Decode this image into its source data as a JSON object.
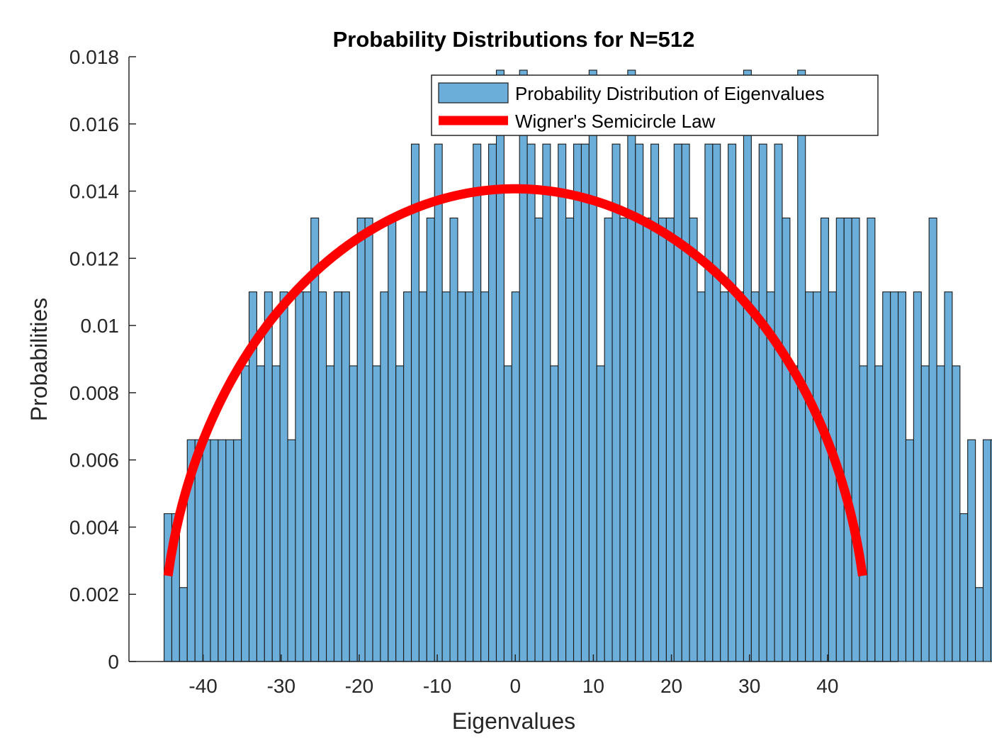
{
  "chart_data": {
    "type": "bar",
    "title": "Probability Distributions for N=512",
    "xlabel": "Eigenvalues",
    "ylabel": "Probabilities",
    "xlim": [
      -49.5,
      49
    ],
    "ylim": [
      0,
      0.018
    ],
    "xticks": [
      -40,
      -30,
      -20,
      -10,
      0,
      10,
      20,
      30,
      40
    ],
    "xtick_labels": [
      "-40",
      "-30",
      "-20",
      "-10",
      "0",
      "10",
      "20",
      "30",
      "40"
    ],
    "yticks": [
      0,
      0.002,
      0.004,
      0.006,
      0.008,
      0.01,
      0.012,
      0.014,
      0.016,
      0.018
    ],
    "ytick_labels": [
      "0",
      "0.002",
      "0.004",
      "0.006",
      "0.008",
      "0.01",
      "0.012",
      "0.014",
      "0.016",
      "0.018"
    ],
    "grid": false,
    "legend_position": "top-right",
    "histogram": {
      "name": "Probability Distribution of Eigenvalues",
      "bin_start": -45.0,
      "bin_width": 0.99,
      "values": [
        0.0044,
        0.0044,
        0.0022,
        0.0066,
        0.0066,
        0.0066,
        0.0066,
        0.0066,
        0.0066,
        0.0066,
        0.0088,
        0.011,
        0.0088,
        0.011,
        0.0088,
        0.011,
        0.0066,
        0.011,
        0.011,
        0.0132,
        0.011,
        0.0088,
        0.011,
        0.011,
        0.0088,
        0.0132,
        0.0132,
        0.0088,
        0.011,
        0.0132,
        0.0088,
        0.011,
        0.0154,
        0.011,
        0.0132,
        0.0154,
        0.011,
        0.0132,
        0.011,
        0.011,
        0.0154,
        0.011,
        0.0154,
        0.0176,
        0.0088,
        0.011,
        0.0176,
        0.0154,
        0.0132,
        0.0154,
        0.0088,
        0.0154,
        0.0132,
        0.0154,
        0.0154,
        0.0176,
        0.0088,
        0.0132,
        0.0154,
        0.0132,
        0.0176,
        0.0154,
        0.0132,
        0.0154,
        0.0132,
        0.0132,
        0.0154,
        0.0154,
        0.0132,
        0.011,
        0.0154,
        0.0154,
        0.011,
        0.0154,
        0.011,
        0.0176,
        0.011,
        0.0154,
        0.011,
        0.0154,
        0.0132,
        0.0088,
        0.0176,
        0.011,
        0.011,
        0.0132,
        0.011,
        0.0132,
        0.0132,
        0.0132,
        0.0088,
        0.0132,
        0.0088,
        0.011,
        0.011,
        0.011,
        0.0066,
        0.011,
        0.0088,
        0.0132,
        0.0088,
        0.011,
        0.0088,
        0.0044,
        0.0066,
        0.0022,
        0.0066,
        0.0066
      ]
    },
    "semicircle": {
      "name": "Wigner's Semicircle Law",
      "center": 0,
      "radius": 45.25,
      "x_range": [
        -44.5,
        44.5
      ]
    },
    "colors": {
      "bar_fill": "#6AAED9",
      "bar_edge": "#1a1a1a",
      "curve": "#FF0000",
      "axis": "#262626"
    }
  }
}
